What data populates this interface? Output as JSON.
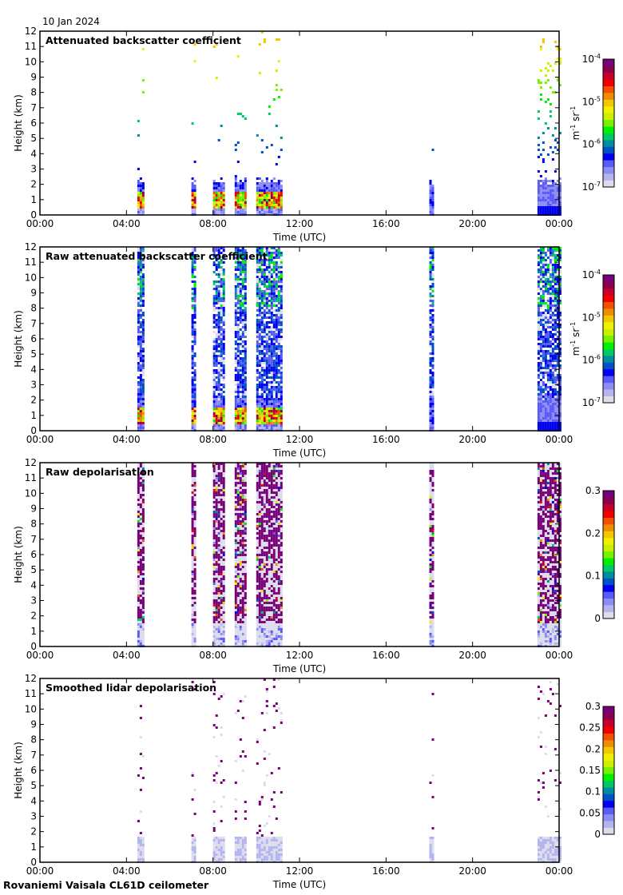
{
  "header": {
    "date": "10 Jan 2024"
  },
  "footer": {
    "instrument": "Rovaniemi Vaisala CL61D ceilometer"
  },
  "colors": {
    "colormap": [
      "#dcdcec",
      "#b4b4ee",
      "#8c8cf4",
      "#5a5af8",
      "#0000f0",
      "#0050c8",
      "#008ca0",
      "#00c864",
      "#00f000",
      "#78f000",
      "#c8f000",
      "#f0f000",
      "#f0c800",
      "#f08c00",
      "#f05000",
      "#f00000",
      "#c80028",
      "#8c0050",
      "#780078"
    ]
  },
  "chart_data": [
    {
      "type": "heatmap",
      "title": "Attenuated backscatter coefficient",
      "xlabel": "Time (UTC)",
      "ylabel": "Height (km)",
      "xlim": [
        0,
        24
      ],
      "ylim": [
        0,
        12
      ],
      "xticks": [
        "00:00",
        "04:00",
        "08:00",
        "12:00",
        "16:00",
        "20:00",
        "00:00"
      ],
      "yticks": [
        "0",
        "1",
        "2",
        "3",
        "4",
        "5",
        "6",
        "7",
        "8",
        "9",
        "10",
        "11",
        "12"
      ],
      "colorbar": {
        "label": "m-1 sr-1",
        "label_base": "m",
        "label_exp1": "-1",
        "label_mid": " sr",
        "label_exp2": "-1",
        "scale": "log",
        "range": [
          1e-07,
          0.0001
        ],
        "ticks": [
          {
            "base": "10",
            "exp": "-7"
          },
          {
            "base": "10",
            "exp": "-6"
          },
          {
            "base": "10",
            "exp": "-5"
          },
          {
            "base": "10",
            "exp": "-4"
          }
        ]
      },
      "kind": "att",
      "data_periods_utc": [
        [
          4.5,
          4.75
        ],
        [
          7.0,
          7.2
        ],
        [
          8.0,
          8.5
        ],
        [
          9.0,
          9.5
        ],
        [
          10.0,
          11.2
        ],
        [
          18.0,
          18.2
        ],
        [
          23.0,
          24.0
        ]
      ]
    },
    {
      "type": "heatmap",
      "title": "Raw attenuated backscatter coefficient",
      "xlabel": "Time (UTC)",
      "ylabel": "Height (km)",
      "xlim": [
        0,
        24
      ],
      "ylim": [
        0,
        12
      ],
      "xticks": [
        "00:00",
        "04:00",
        "08:00",
        "12:00",
        "16:00",
        "20:00",
        "00:00"
      ],
      "yticks": [
        "0",
        "1",
        "2",
        "3",
        "4",
        "5",
        "6",
        "7",
        "8",
        "9",
        "10",
        "11",
        "12"
      ],
      "colorbar": {
        "label": "m-1 sr-1",
        "label_base": "m",
        "label_exp1": "-1",
        "label_mid": " sr",
        "label_exp2": "-1",
        "scale": "log",
        "range": [
          1e-07,
          0.0001
        ],
        "ticks": [
          {
            "base": "10",
            "exp": "-7"
          },
          {
            "base": "10",
            "exp": "-6"
          },
          {
            "base": "10",
            "exp": "-5"
          },
          {
            "base": "10",
            "exp": "-4"
          }
        ]
      },
      "kind": "raw",
      "data_periods_utc": [
        [
          4.5,
          4.75
        ],
        [
          7.0,
          7.2
        ],
        [
          8.0,
          8.5
        ],
        [
          9.0,
          9.5
        ],
        [
          10.0,
          11.2
        ],
        [
          18.0,
          18.2
        ],
        [
          23.0,
          24.0
        ]
      ]
    },
    {
      "type": "heatmap",
      "title": "Raw depolarisation",
      "xlabel": "Time (UTC)",
      "ylabel": "Height (km)",
      "xlim": [
        0,
        24
      ],
      "ylim": [
        0,
        12
      ],
      "xticks": [
        "00:00",
        "04:00",
        "08:00",
        "12:00",
        "16:00",
        "20:00",
        "00:00"
      ],
      "yticks": [
        "0",
        "1",
        "2",
        "3",
        "4",
        "5",
        "6",
        "7",
        "8",
        "9",
        "10",
        "11",
        "12"
      ],
      "colorbar": {
        "label": "",
        "scale": "linear",
        "range": [
          0,
          0.3
        ],
        "ticks": [
          {
            "base": "0"
          },
          {
            "base": "0.1"
          },
          {
            "base": "0.2"
          },
          {
            "base": "0.3"
          }
        ]
      },
      "kind": "rawdep",
      "data_periods_utc": [
        [
          4.5,
          4.75
        ],
        [
          7.0,
          7.2
        ],
        [
          8.0,
          8.5
        ],
        [
          9.0,
          9.5
        ],
        [
          10.0,
          11.2
        ],
        [
          18.0,
          18.2
        ],
        [
          23.0,
          24.0
        ]
      ]
    },
    {
      "type": "heatmap",
      "title": "Smoothed lidar depolarisation",
      "xlabel": "Time (UTC)",
      "ylabel": "Height (km)",
      "xlim": [
        0,
        24
      ],
      "ylim": [
        0,
        12
      ],
      "xticks": [
        "00:00",
        "04:00",
        "08:00",
        "12:00",
        "16:00",
        "20:00",
        "00:00"
      ],
      "yticks": [
        "0",
        "1",
        "2",
        "3",
        "4",
        "5",
        "6",
        "7",
        "8",
        "9",
        "10",
        "11",
        "12"
      ],
      "colorbar": {
        "label": "",
        "scale": "linear",
        "range": [
          0,
          0.3
        ],
        "ticks": [
          {
            "base": "0"
          },
          {
            "base": "0.05"
          },
          {
            "base": "0.1"
          },
          {
            "base": "0.15"
          },
          {
            "base": "0.2"
          },
          {
            "base": "0.25"
          },
          {
            "base": "0.3"
          }
        ]
      },
      "kind": "smdep",
      "data_periods_utc": [
        [
          4.5,
          4.75
        ],
        [
          7.0,
          7.2
        ],
        [
          8.0,
          8.5
        ],
        [
          9.0,
          9.5
        ],
        [
          10.0,
          11.2
        ],
        [
          18.0,
          18.2
        ],
        [
          23.0,
          24.0
        ]
      ]
    }
  ]
}
